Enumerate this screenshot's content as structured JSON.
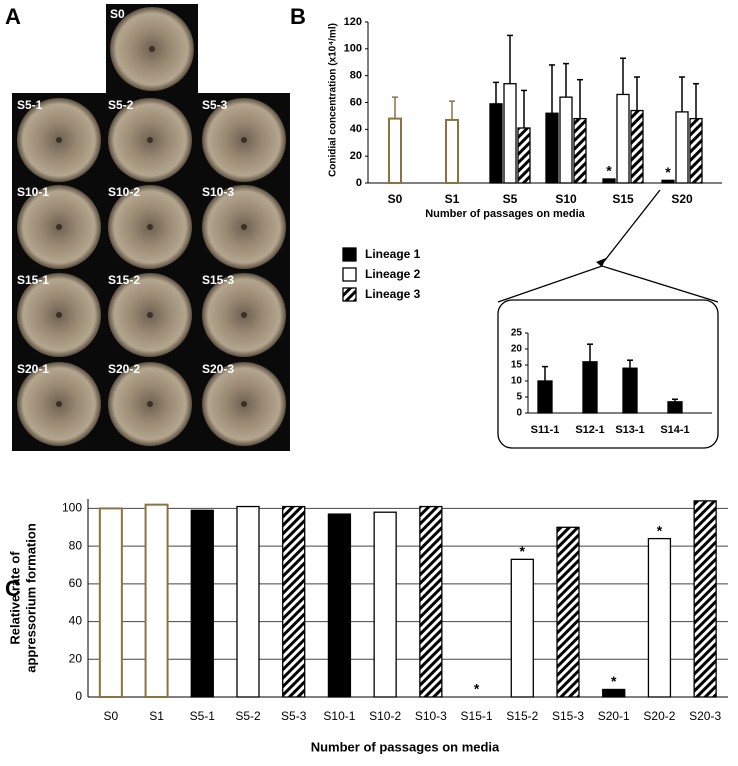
{
  "panel_letters": [
    "A",
    "B",
    "C"
  ],
  "photos": [
    "S0",
    "S5-1",
    "S5-2",
    "S5-3",
    "S10-1",
    "S10-2",
    "S10-3",
    "S15-1",
    "S15-2",
    "S15-3",
    "S20-1",
    "S20-2",
    "S20-3"
  ],
  "chart_data": [
    {
      "type": "bar",
      "ylabel": "Conidial  concentration (x10⁴/ml)",
      "xlabel": "Number of passages on media",
      "categories": [
        "S0",
        "S1",
        "S5",
        "S10",
        "S15",
        "S20"
      ],
      "ylim": [
        0,
        120
      ],
      "yticks": [
        0,
        20,
        40,
        60,
        80,
        100,
        120
      ],
      "grid": false,
      "series": [
        {
          "color": "#8b7340",
          "fill": "none",
          "values": [
            48,
            47,
            null,
            null,
            null,
            null
          ],
          "errors": [
            16,
            14,
            null,
            null,
            null,
            null
          ]
        },
        {
          "name": "Lineage 1",
          "color": "#000000",
          "fill": "solid",
          "values": [
            null,
            null,
            59,
            52,
            3,
            2
          ],
          "errors": [
            null,
            null,
            16,
            36,
            null,
            null
          ],
          "labels": [
            null,
            null,
            null,
            null,
            "*",
            "*"
          ]
        },
        {
          "name": "Lineage 2",
          "color": "#000000",
          "fill": "none",
          "values": [
            null,
            null,
            74,
            64,
            66,
            53
          ],
          "errors": [
            null,
            null,
            36,
            25,
            27,
            26
          ]
        },
        {
          "name": "Lineage 3",
          "color": "#000000",
          "fill": "hatch",
          "values": [
            null,
            null,
            41,
            48,
            54,
            48
          ],
          "errors": [
            null,
            null,
            28,
            29,
            25,
            26
          ]
        }
      ]
    },
    {
      "type": "bar",
      "categories": [
        "S11-1",
        "S12-1",
        "S13-1",
        "S14-1"
      ],
      "ylim": [
        0,
        25
      ],
      "yticks": [
        0,
        5,
        10,
        15,
        20,
        25
      ],
      "grid": false,
      "series": [
        {
          "color": "#000000",
          "fill": "solid",
          "values": [
            10,
            16,
            14,
            3.5
          ],
          "errors": [
            4.5,
            5.5,
            2.5,
            0.8
          ]
        }
      ]
    },
    {
      "type": "bar",
      "ylabel": [
        "Relative rate of",
        "appressorium formation"
      ],
      "xlabel": "Number of passages on media",
      "categories": [
        "S0",
        "S1",
        "S5-1",
        "S5-2",
        "S5-3",
        "S10-1",
        "S10-2",
        "S10-3",
        "S15-1",
        "S15-2",
        "S15-3",
        "S20-1",
        "S20-2",
        "S20-3"
      ],
      "ylim": [
        0,
        105
      ],
      "yticks": [
        0,
        20,
        40,
        60,
        80,
        100
      ],
      "grid": true,
      "series": [
        {
          "values": [
            100,
            102,
            99,
            101,
            101,
            97,
            98,
            101,
            0,
            73,
            90,
            4,
            84,
            104
          ],
          "colors": [
            "#8b7340",
            "#8b7340",
            "#000000",
            "#000000",
            "#000000",
            "#000000",
            "#000000",
            "#000000",
            "#000000",
            "#000000",
            "#000000",
            "#000000",
            "#000000",
            "#000000"
          ],
          "fills": [
            "none",
            "none",
            "solid",
            "none",
            "hatch",
            "solid",
            "none",
            "hatch",
            "solid",
            "none",
            "hatch",
            "solid",
            "none",
            "hatch"
          ],
          "labels": [
            null,
            null,
            null,
            null,
            null,
            null,
            null,
            null,
            "*",
            "*",
            null,
            "*",
            "*",
            null
          ]
        }
      ]
    }
  ]
}
